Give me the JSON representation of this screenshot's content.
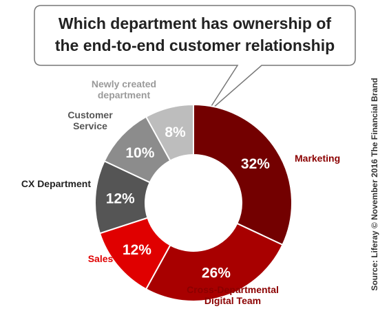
{
  "chart_data": {
    "type": "pie",
    "title_lines": [
      "Which department has ownership of",
      "the end-to-end customer relationship"
    ],
    "slices": [
      {
        "label_lines": [
          "Marketing"
        ],
        "value": 32,
        "display": "32%",
        "color": "#730000",
        "label_color": "#8b0000"
      },
      {
        "label_lines": [
          "Cross-Departmental",
          "Digital Team"
        ],
        "value": 26,
        "display": "26%",
        "color": "#a80000",
        "label_color": "#8b0000"
      },
      {
        "label_lines": [
          "Sales"
        ],
        "value": 12,
        "display": "12%",
        "color": "#e00000",
        "label_color": "#e00000"
      },
      {
        "label_lines": [
          "CX Department"
        ],
        "value": 12,
        "display": "12%",
        "color": "#555555",
        "label_color": "#222222"
      },
      {
        "label_lines": [
          "Customer",
          "Service"
        ],
        "value": 10,
        "display": "10%",
        "color": "#8c8c8c",
        "label_color": "#555555"
      },
      {
        "label_lines": [
          "Newly created",
          "department"
        ],
        "value": 8,
        "display": "8%",
        "color": "#bdbdbd",
        "label_color": "#9a9a9a"
      }
    ],
    "hole": "donut"
  },
  "source": "Source: Liferay © November 2016 The Financial Brand"
}
